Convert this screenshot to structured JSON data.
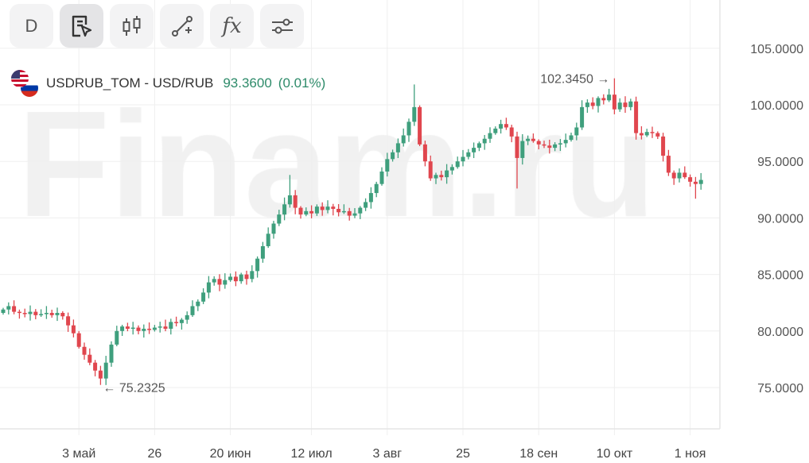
{
  "toolbar": {
    "period_label": "D",
    "buttons": [
      "select-tool-icon",
      "candles-icon",
      "draw-line-icon",
      "indicators-icon",
      "settings-sliders-icon"
    ],
    "fx_label": "fx"
  },
  "legend": {
    "symbol": "USDRUB_TOM - USD/RUB",
    "price": "93.3600",
    "change": "(0.01%)"
  },
  "watermark": "Finam.ru",
  "colors": {
    "up": "#3f9f7d",
    "down": "#e0464e",
    "grid": "#efefef",
    "text": "#555555",
    "accent": "#2e8b6a"
  },
  "chart_data": {
    "type": "candlestick",
    "title": "USDRUB_TOM - USD/RUB",
    "ylim": [
      71.0,
      110.0
    ],
    "y_ticks": [
      "105.0000",
      "100.0000",
      "95.0000",
      "90.0000",
      "85.0000",
      "80.0000",
      "75.0000"
    ],
    "y_tick_values": [
      105,
      100,
      95,
      90,
      85,
      80,
      75
    ],
    "x_ticks": [
      {
        "label": "3 май",
        "index": 14
      },
      {
        "label": "26",
        "index": 28
      },
      {
        "label": "20 июн",
        "index": 42
      },
      {
        "label": "12 июл",
        "index": 57
      },
      {
        "label": "3 авг",
        "index": 71
      },
      {
        "label": "25",
        "index": 85
      },
      {
        "label": "18 сен",
        "index": 99
      },
      {
        "label": "10 окт",
        "index": 113
      },
      {
        "label": "1 ноя",
        "index": 127
      }
    ],
    "close": [
      81.9,
      82.2,
      81.7,
      81.6,
      81.5,
      81.7,
      81.4,
      81.5,
      81.6,
      81.4,
      81.6,
      81.3,
      80.5,
      79.8,
      78.6,
      77.9,
      77.2,
      76.5,
      75.8,
      77.2,
      78.8,
      80.0,
      80.4,
      80.2,
      80.3,
      80.0,
      80.2,
      80.1,
      80.3,
      80.4,
      80.2,
      80.8,
      80.7,
      81.0,
      81.4,
      82.2,
      82.6,
      83.4,
      84.3,
      84.6,
      84.1,
      84.5,
      84.8,
      84.4,
      85.0,
      84.6,
      85.3,
      86.4,
      87.5,
      88.6,
      89.5,
      90.3,
      91.2,
      92.0,
      90.9,
      90.3,
      90.6,
      90.4,
      91.0,
      90.7,
      91.0,
      90.8,
      90.5,
      90.6,
      90.2,
      90.4,
      90.9,
      91.4,
      92.2,
      93.0,
      94.1,
      95.2,
      95.8,
      96.6,
      97.3,
      98.5,
      99.8,
      96.5,
      95.0,
      93.5,
      93.8,
      93.6,
      94.2,
      94.5,
      95.0,
      95.4,
      95.8,
      96.2,
      96.6,
      97.0,
      97.5,
      97.9,
      98.3,
      98.0,
      97.2,
      95.3,
      96.8,
      97.0,
      96.8,
      96.5,
      96.4,
      96.2,
      96.5,
      96.6,
      96.9,
      97.3,
      98.0,
      99.8,
      100.2,
      99.9,
      100.6,
      100.4,
      100.9,
      99.6,
      100.2,
      99.8,
      100.3,
      97.5,
      97.3,
      97.6,
      97.5,
      97.2,
      95.5,
      94.0,
      93.5,
      94.0,
      93.6,
      93.2,
      93.0,
      93.36
    ],
    "first_open": 81.6,
    "wick_overrides": [
      {
        "index": 18,
        "low": 75.2325
      },
      {
        "index": 76,
        "high": 101.8
      },
      {
        "index": 53,
        "high": 93.8
      },
      {
        "index": 95,
        "low": 92.6
      },
      {
        "index": 113,
        "high": 102.345
      },
      {
        "index": 128,
        "low": 91.7
      }
    ],
    "annotations": [
      {
        "text": "← 75.2325",
        "index": 18,
        "value": 75.2325,
        "side": "right"
      },
      {
        "text": "102.3450 →",
        "index": 113,
        "value": 102.345,
        "side": "left"
      }
    ]
  }
}
